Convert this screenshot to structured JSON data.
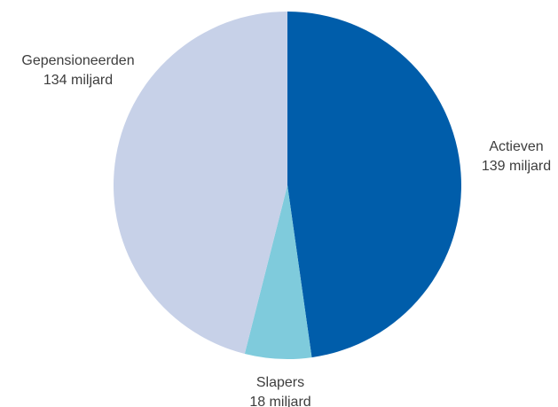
{
  "chart_data": {
    "type": "pie",
    "unit": "miljard",
    "slices": [
      {
        "name": "Actieven",
        "value": 139,
        "value_label": "139 miljard",
        "color": "#005daa"
      },
      {
        "name": "Slapers",
        "value": 18,
        "value_label": "18 miljard",
        "color": "#7fcbdc"
      },
      {
        "name": "Gepensioneerden",
        "value": 134,
        "value_label": "134 miljard",
        "color": "#c7d1e8"
      }
    ],
    "start": "12 o'clock",
    "direction": "clockwise",
    "legend": "none",
    "labels_outside": true
  }
}
